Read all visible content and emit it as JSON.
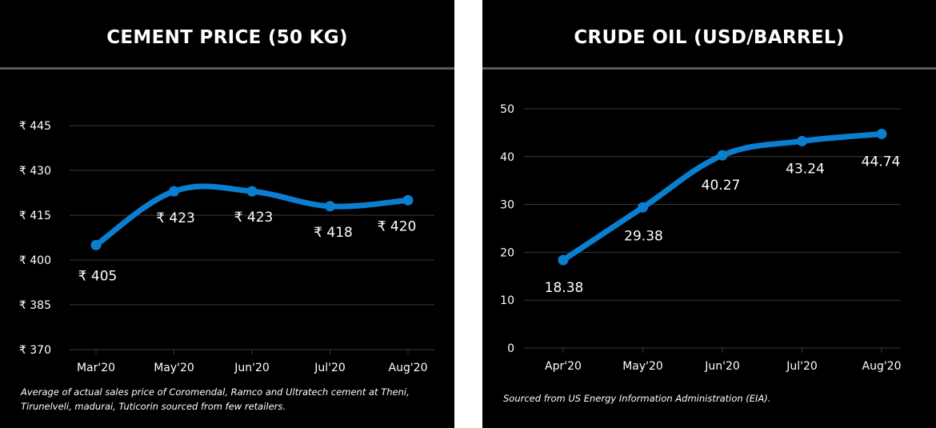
{
  "colors": {
    "background": "#000000",
    "line": "#0a7fd0",
    "grid": "#3a3a3a",
    "text": "#ffffff"
  },
  "chart_data": [
    {
      "type": "line",
      "title": "CEMENT PRICE (50 KG)",
      "categories": [
        "Mar'20",
        "May'20",
        "Jun'20",
        "Jul'20",
        "Aug'20"
      ],
      "values": [
        405,
        423,
        423,
        418,
        420
      ],
      "data_labels": [
        "₹ 405",
        "₹ 423",
        "₹ 423",
        "₹ 418",
        "₹ 420"
      ],
      "y_ticks": [
        370,
        385,
        400,
        415,
        430,
        445
      ],
      "y_tick_labels": [
        "₹ 370",
        "₹ 385",
        "₹ 400",
        "₹ 415",
        "₹ 430",
        "₹ 445"
      ],
      "ylim": [
        370,
        445
      ],
      "xlabel": "",
      "ylabel": "",
      "grid": true,
      "smooth": true,
      "note": "Average of actual sales price of Coromendal, Ramco and Ultratech cement at Theni, Tirunelveli, madurai, Tuticorin sourced from few retailers."
    },
    {
      "type": "line",
      "title": "CRUDE OIL (USD/BARREL)",
      "categories": [
        "Apr'20",
        "May'20",
        "Jun'20",
        "Jul'20",
        "Aug'20"
      ],
      "values": [
        18.38,
        29.38,
        40.27,
        43.24,
        44.74
      ],
      "data_labels": [
        "18.38",
        "29.38",
        "40.27",
        "43.24",
        "44.74"
      ],
      "y_ticks": [
        0,
        10,
        20,
        30,
        40,
        50
      ],
      "y_tick_labels": [
        "0",
        "10",
        "20",
        "30",
        "40",
        "50"
      ],
      "ylim": [
        0,
        50
      ],
      "xlabel": "",
      "ylabel": "",
      "grid": true,
      "smooth": true,
      "note": "Sourced from US Energy Information Administration (EIA)."
    }
  ]
}
